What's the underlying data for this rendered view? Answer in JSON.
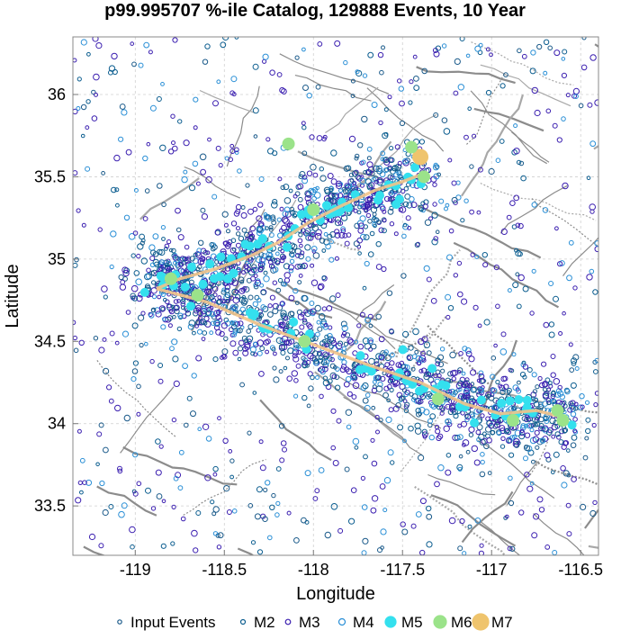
{
  "chart_data": {
    "type": "scatter",
    "title": "p99.995707 %-ile Catalog, 129888 Events, 10 Year",
    "xlabel": "Longitude",
    "ylabel": "Latitude",
    "xlim": [
      -119.35,
      -116.4
    ],
    "ylim": [
      33.2,
      36.35
    ],
    "x_ticks": [
      -119,
      -118.5,
      -118,
      -117.5,
      -117,
      -116.5
    ],
    "x_tick_labels": [
      "-119",
      "-118.5",
      "-118",
      "-117.5",
      "-117",
      "-116.5"
    ],
    "y_ticks": [
      33.5,
      34,
      34.5,
      35,
      35.5,
      36
    ],
    "y_tick_labels": [
      "33.5",
      "34",
      "34.5",
      "35",
      "35.5",
      "36"
    ],
    "grid": true,
    "legend_position": "bottom",
    "series": [
      {
        "name": "Input Events",
        "color": "#1a5a8a",
        "marker": "small-open-circle"
      },
      {
        "name": "M2",
        "color": "#0b5d8f",
        "marker": "open-circle"
      },
      {
        "name": "M3",
        "color": "#3b1fb0",
        "marker": "open-circle"
      },
      {
        "name": "M4",
        "color": "#2a8fd6",
        "marker": "open-circle"
      },
      {
        "name": "M5",
        "color": "#34e0ee",
        "marker": "filled-circle"
      },
      {
        "name": "M6",
        "color": "#9be38a",
        "marker": "filled-circle"
      },
      {
        "name": "M7",
        "color": "#efc46d",
        "marker": "filled-circle"
      }
    ],
    "fault_trace": [
      [
        -118.88,
        34.82
      ],
      [
        -118.75,
        34.88
      ],
      [
        -118.55,
        34.94
      ],
      [
        -118.35,
        35.02
      ],
      [
        -118.2,
        35.1
      ],
      [
        -118.03,
        35.22
      ],
      [
        -117.85,
        35.32
      ],
      [
        -117.65,
        35.42
      ],
      [
        -117.5,
        35.47
      ],
      [
        -117.38,
        35.52
      ]
    ],
    "fault_trace_2": [
      [
        -118.88,
        34.82
      ],
      [
        -118.6,
        34.74
      ],
      [
        -118.3,
        34.6
      ],
      [
        -118.0,
        34.48
      ],
      [
        -117.7,
        34.36
      ],
      [
        -117.4,
        34.25
      ],
      [
        -117.15,
        34.12
      ],
      [
        -116.95,
        34.06
      ],
      [
        -116.75,
        34.08
      ],
      [
        -116.6,
        34.04
      ]
    ],
    "large_events": [
      {
        "x": -117.4,
        "y": 35.62,
        "mag": "M7"
      },
      {
        "x": -117.45,
        "y": 35.68,
        "mag": "M6"
      },
      {
        "x": -118.14,
        "y": 35.7,
        "mag": "M6"
      },
      {
        "x": -117.38,
        "y": 35.5,
        "mag": "M6"
      },
      {
        "x": -118.0,
        "y": 35.3,
        "mag": "M6"
      },
      {
        "x": -118.8,
        "y": 34.88,
        "mag": "M6"
      },
      {
        "x": -118.65,
        "y": 34.78,
        "mag": "M6"
      },
      {
        "x": -118.05,
        "y": 34.5,
        "mag": "M6"
      },
      {
        "x": -117.3,
        "y": 34.15,
        "mag": "M6"
      },
      {
        "x": -116.88,
        "y": 34.02,
        "mag": "M6"
      },
      {
        "x": -116.63,
        "y": 34.08,
        "mag": "M6"
      },
      {
        "x": -116.6,
        "y": 34.02,
        "mag": "M6"
      }
    ]
  }
}
